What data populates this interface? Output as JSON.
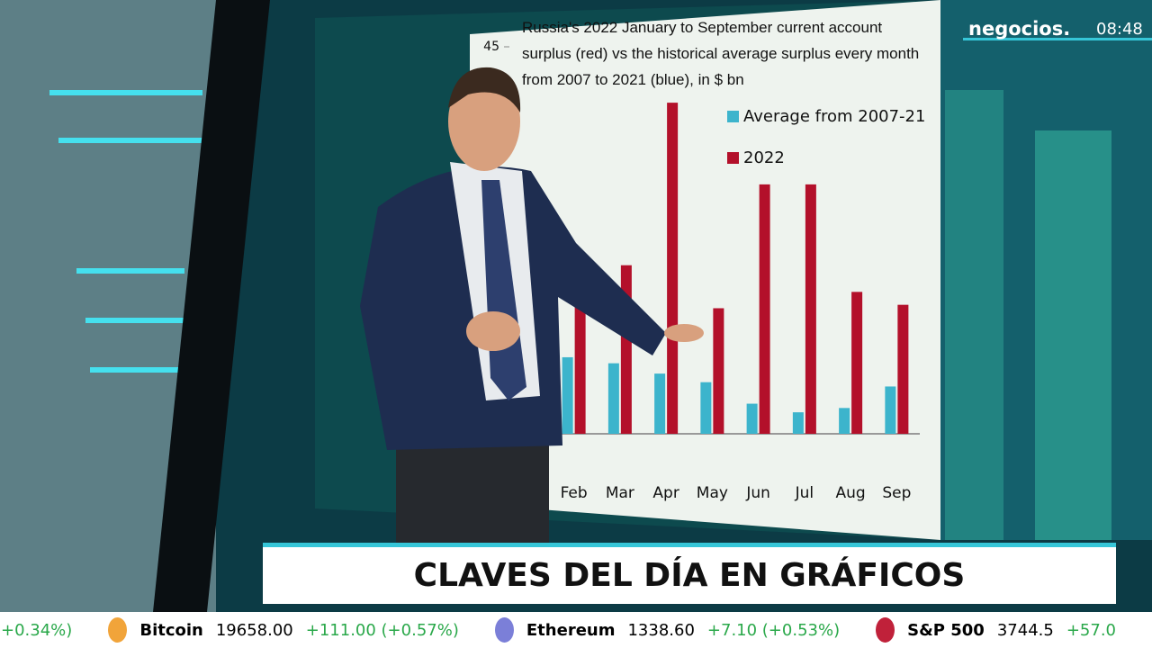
{
  "channel": {
    "logo": "negocios.",
    "clock": "08:48"
  },
  "chart_data": {
    "type": "bar",
    "title": "Russia's 2022 January to September current account surplus (red) vs the historical average surplus every month from 2007 to 2021 (blue), in $ bn",
    "categories": [
      "Feb",
      "Mar",
      "Apr",
      "May",
      "Jun",
      "Jul",
      "Aug",
      "Sep"
    ],
    "series": [
      {
        "name": "Average from 2007-21",
        "color": "#3cb4cc",
        "values": [
          8.9,
          8.2,
          7,
          6,
          3.5,
          2.5,
          3,
          5.5
        ]
      },
      {
        "name": "2022",
        "color": "#b3102a",
        "values": [
          20.6,
          19.6,
          38.5,
          14.6,
          29,
          29,
          16.5,
          15
        ]
      }
    ],
    "ylim": [
      0,
      45
    ],
    "yticks": [
      45
    ]
  },
  "banner": {
    "title": "CLAVES DEL DÍA EN GRÁFICOS"
  },
  "ticker": [
    {
      "name": null,
      "price": null,
      "change": "(+0.34%)"
    },
    {
      "name": "Bitcoin",
      "price": "19658.00",
      "change": "+111.00 (+0.57%)"
    },
    {
      "name": "Ethereum",
      "price": "1338.60",
      "change": "+7.10 (+0.53%)"
    },
    {
      "name": "S&P 500",
      "price": "3744.5",
      "change": "+57.0"
    }
  ]
}
